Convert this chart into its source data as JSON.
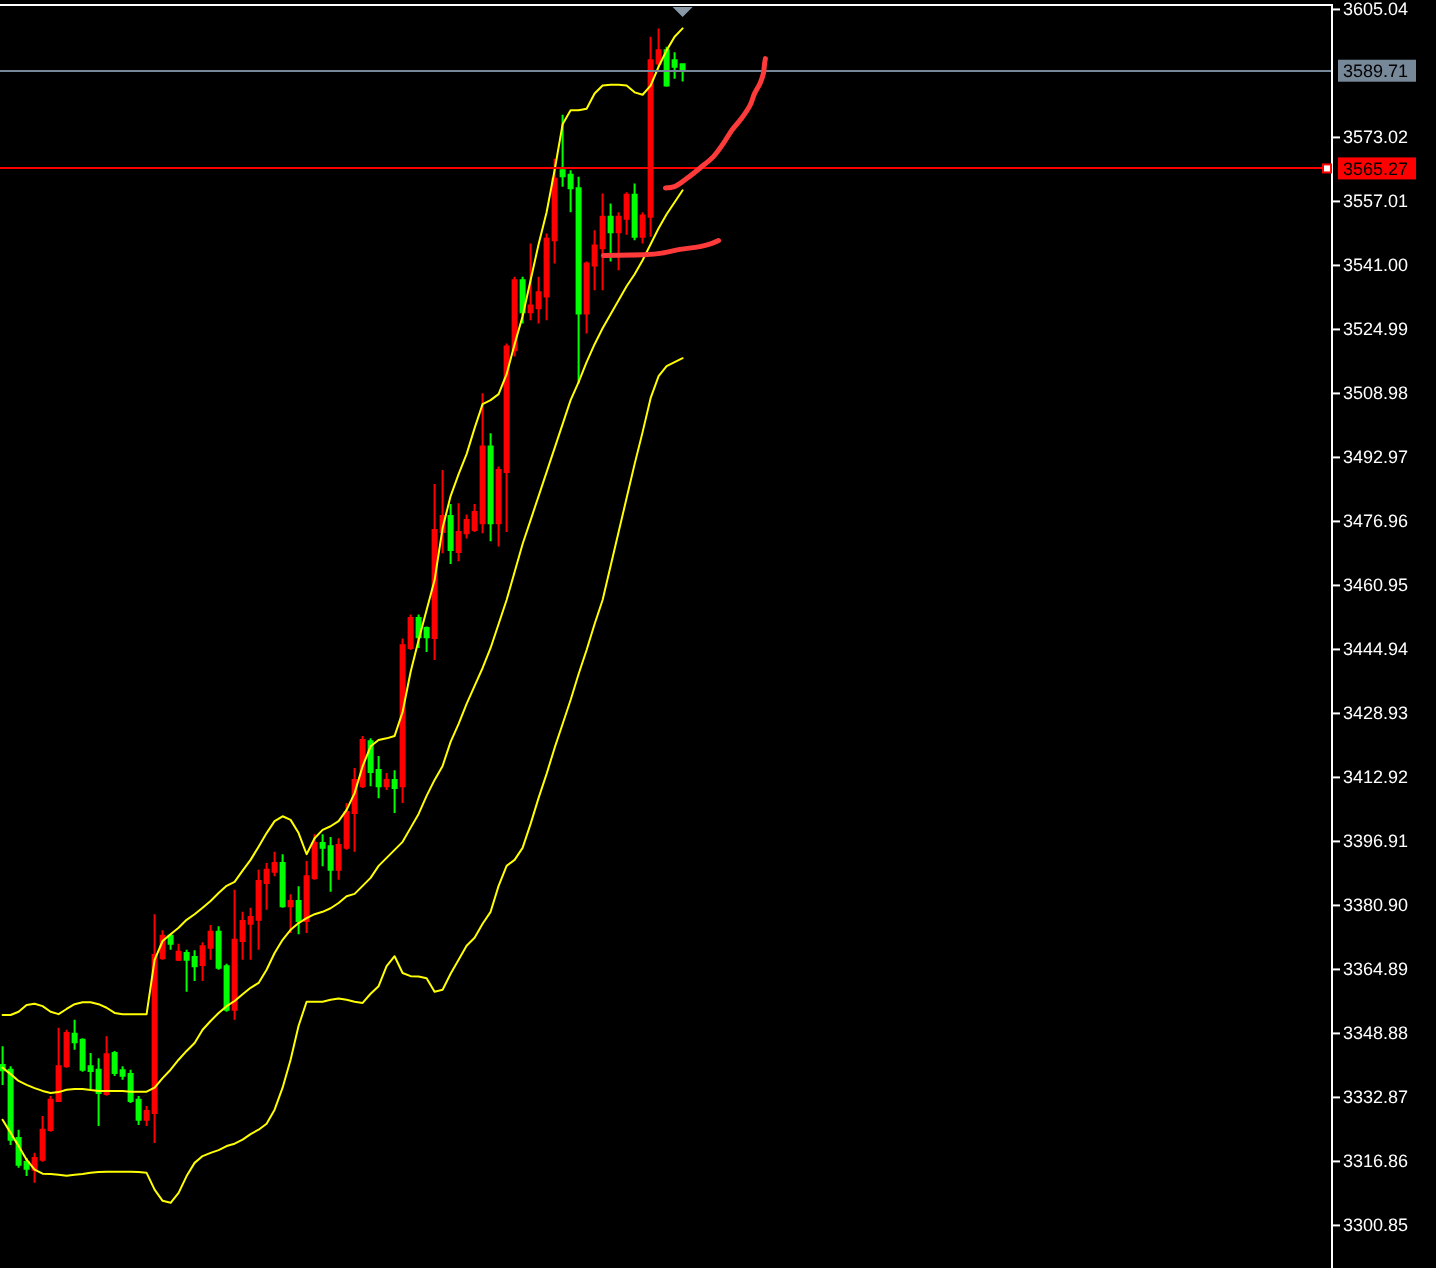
{
  "chart_data": {
    "type": "candlestick",
    "categories": [
      null,
      null,
      null,
      null,
      null,
      null,
      null,
      null,
      null,
      null,
      null,
      null,
      null,
      null,
      null,
      null,
      null,
      null,
      null,
      null,
      null,
      null,
      null,
      null,
      null,
      null,
      null,
      null,
      null,
      null,
      null,
      null,
      null,
      null,
      null,
      null,
      null,
      null,
      null,
      null,
      null,
      null,
      null,
      null,
      null,
      null,
      null,
      null,
      null,
      null,
      null,
      null,
      null,
      null,
      null,
      null,
      null,
      null,
      null,
      null,
      null,
      null,
      null,
      null,
      null,
      null,
      null,
      null,
      null,
      null,
      null,
      null,
      null,
      null,
      null,
      null,
      null,
      null,
      null,
      null,
      null,
      null,
      null,
      null,
      null,
      null
    ],
    "ylim": [
      3290.2,
      3606.4
    ],
    "yticks": [
      3605.04,
      3573.02,
      3557.01,
      {
        "value": 3541.0,
        "label": "3541.00"
      },
      3524.99,
      3508.98,
      3492.97,
      3476.96,
      3460.95,
      3444.94,
      3428.93,
      3412.92,
      3396.91,
      {
        "value": 3380.9,
        "label": "3380.90"
      },
      3364.89,
      3348.88,
      3332.87,
      3316.86,
      3300.85
    ],
    "tick_labels": "y",
    "ohlc": [
      [
        3341.0,
        3345.7,
        3336.0,
        3339.7
      ],
      [
        3339.8,
        3340.7,
        3321.0,
        3322.3
      ],
      [
        3322.7,
        3324.8,
        3315.3,
        3316.0
      ],
      [
        3316.7,
        3317.7,
        3313.2,
        3315.0
      ],
      [
        3314.8,
        3319.0,
        3311.5,
        3317.7
      ],
      [
        3317.3,
        3328.2,
        3316.8,
        3324.8
      ],
      [
        3324.7,
        3333.2,
        3324.3,
        3332.3
      ],
      [
        3332.0,
        3350.3,
        3331.7,
        3340.7
      ],
      [
        3340.7,
        3349.8,
        3340.3,
        3349.0
      ],
      [
        3348.8,
        3352.3,
        3344.8,
        3346.7
      ],
      [
        3347.3,
        3347.7,
        3339.3,
        3339.8
      ],
      [
        3340.7,
        3344.0,
        3334.8,
        3339.5
      ],
      [
        3339.8,
        3342.7,
        3325.7,
        3334.0
      ],
      [
        3333.7,
        3348.2,
        3333.3,
        3343.7
      ],
      [
        3344.0,
        3344.5,
        3338.2,
        3339.0
      ],
      [
        3339.7,
        3340.7,
        3337.3,
        3338.3
      ],
      [
        3338.7,
        3339.8,
        3331.5,
        3332.0
      ],
      [
        3332.3,
        3333.2,
        3326.0,
        3327.3
      ],
      [
        3327.3,
        3330.7,
        3325.7,
        3329.5
      ],
      [
        3329.0,
        3378.7,
        3321.5,
        3368.5
      ],
      [
        3367.7,
        3374.7,
        3367.3,
        3373.3
      ],
      [
        3373.3,
        3373.7,
        3369.8,
        3371.3
      ],
      [
        3367.3,
        3371.3,
        3367.0,
        3369.3
      ],
      [
        3369.0,
        3369.8,
        3359.3,
        3367.3
      ],
      [
        3368.0,
        3369.7,
        3362.0,
        3365.7
      ],
      [
        3366.0,
        3371.7,
        3362.0,
        3370.7
      ],
      [
        3370.3,
        3376.0,
        3367.3,
        3374.3
      ],
      [
        3374.3,
        3375.7,
        3364.8,
        3365.3
      ],
      [
        3365.7,
        3366.3,
        3354.3,
        3354.8
      ],
      [
        3354.8,
        3384.8,
        3352.3,
        3372.3
      ],
      [
        3372.0,
        3379.3,
        3367.3,
        3377.0
      ],
      [
        3376.3,
        3380.3,
        3367.3,
        3378.0
      ],
      [
        3377.3,
        3389.8,
        3369.8,
        3387.0
      ],
      [
        3386.5,
        3391.5,
        3379.8,
        3389.8
      ],
      [
        3389.3,
        3394.3,
        3388.2,
        3391.5
      ],
      [
        3391.5,
        3393.7,
        3380.3,
        3380.7
      ],
      [
        3380.7,
        3383.7,
        3374.0,
        3382.0
      ],
      [
        3382.0,
        3385.7,
        3373.7,
        3377.0
      ],
      [
        3377.0,
        3392.0,
        3374.0,
        3388.2
      ],
      [
        3387.7,
        3398.7,
        3387.3,
        3396.5
      ],
      [
        3396.5,
        3398.7,
        3390.7,
        3395.3
      ],
      [
        3395.7,
        3398.0,
        3384.3,
        3389.8
      ],
      [
        3389.8,
        3397.7,
        3387.3,
        3396.0
      ],
      [
        3395.3,
        3406.5,
        3394.8,
        3404.3
      ],
      [
        3404.0,
        3415.3,
        3394.3,
        3412.3
      ],
      [
        3410.7,
        3423.3,
        3410.3,
        3422.3
      ],
      [
        3422.0,
        3422.7,
        3410.7,
        3414.3
      ],
      [
        3414.8,
        3418.3,
        3407.7,
        3410.7
      ],
      [
        3410.7,
        3414.0,
        3409.8,
        3412.3
      ],
      [
        3412.3,
        3414.7,
        3404.0,
        3410.3
      ],
      [
        3410.7,
        3447.7,
        3406.5,
        3446.0
      ],
      [
        3445.3,
        3453.7,
        3444.8,
        3452.8
      ],
      [
        3452.8,
        3453.7,
        3445.3,
        3448.0
      ],
      [
        3450.3,
        3450.7,
        3444.3,
        3448.0
      ],
      [
        3447.8,
        3486.3,
        3442.3,
        3474.8
      ],
      [
        3474.3,
        3489.8,
        3469.0,
        3478.3
      ],
      [
        3478.3,
        3481.3,
        3466.3,
        3469.8
      ],
      [
        3469.3,
        3481.5,
        3467.0,
        3474.3
      ],
      [
        3474.0,
        3478.7,
        3472.7,
        3477.3
      ],
      [
        3474.8,
        3481.3,
        3474.3,
        3479.3
      ],
      [
        3476.5,
        3509.0,
        3474.0,
        3495.7
      ],
      [
        3495.7,
        3499.0,
        3472.0,
        3476.5
      ],
      [
        3476.5,
        3490.7,
        3470.7,
        3489.8
      ],
      [
        3489.3,
        3521.5,
        3474.3,
        3520.7
      ],
      [
        3519.8,
        3538.2,
        3518.2,
        3537.3
      ],
      [
        3537.3,
        3538.2,
        3526.5,
        3529.3
      ],
      [
        3529.3,
        3546.5,
        3527.3,
        3531.0
      ],
      [
        3530.3,
        3538.2,
        3526.5,
        3534.3
      ],
      [
        3533.2,
        3549.0,
        3527.3,
        3547.7
      ],
      [
        3547.3,
        3567.7,
        3541.5,
        3562.7
      ],
      [
        3564.8,
        3578.7,
        3560.7,
        3563.3
      ],
      [
        3563.7,
        3564.8,
        3554.3,
        3560.3
      ],
      [
        3560.3,
        3563.2,
        3511.5,
        3529.0
      ],
      [
        3529.0,
        3542.0,
        3524.0,
        3541.5
      ],
      [
        3541.0,
        3549.8,
        3534.8,
        3546.0
      ],
      [
        3545.3,
        3559.0,
        3534.8,
        3553.2
      ],
      [
        3553.2,
        3556.5,
        3542.0,
        3549.3
      ],
      [
        3549.3,
        3554.3,
        3539.8,
        3553.2
      ],
      [
        3552.7,
        3559.3,
        3548.7,
        3558.7
      ],
      [
        3558.7,
        3561.5,
        3547.3,
        3548.2
      ],
      [
        3548.2,
        3554.3,
        3546.5,
        3553.5
      ],
      [
        3553.2,
        3598.2,
        3548.2,
        3592.3
      ],
      [
        3591.5,
        3600.3,
        3590.7,
        3594.8
      ],
      [
        3594.8,
        3595.7,
        3585.7,
        3586.0
      ],
      [
        3592.3,
        3594.3,
        3587.7,
        3590.7
      ],
      [
        3591.3,
        3591.3,
        3587.0,
        3589.7
      ]
    ],
    "colors": [
      "#00ff00",
      "#00ff00",
      "#00ff00",
      "#00ff00",
      "#ff0000",
      "#ff0000",
      "#ff0000",
      "#ff0000",
      "#ff0000",
      "#00ff00",
      "#00ff00",
      "#00ff00",
      "#00ff00",
      "#ff0000",
      "#00ff00",
      "#00ff00",
      "#00ff00",
      "#00ff00",
      "#ff0000",
      "#ff0000",
      "#ff0000",
      "#00ff00",
      "#ff0000",
      "#00ff00",
      "#00ff00",
      "#ff0000",
      "#ff0000",
      "#00ff00",
      "#00ff00",
      "#ff0000",
      "#ff0000",
      "#ff0000",
      "#ff0000",
      "#ff0000",
      "#ff0000",
      "#00ff00",
      "#ff0000",
      "#00ff00",
      "#ff0000",
      "#ff0000",
      "#00ff00",
      "#00ff00",
      "#ff0000",
      "#ff0000",
      "#ff0000",
      "#ff0000",
      "#00ff00",
      "#00ff00",
      "#ff0000",
      "#00ff00",
      "#ff0000",
      "#ff0000",
      "#00ff00",
      "#00ff00",
      "#ff0000",
      "#ff0000",
      "#00ff00",
      "#ff0000",
      "#ff0000",
      "#ff0000",
      "#ff0000",
      "#00ff00",
      "#ff0000",
      "#ff0000",
      "#ff0000",
      "#00ff00",
      "#ff0000",
      "#ff0000",
      "#ff0000",
      "#ff0000",
      "#00ff00",
      "#00ff00",
      "#00ff00",
      "#ff0000",
      "#ff0000",
      "#ff0000",
      "#00ff00",
      "#ff0000",
      "#ff0000",
      "#00ff00",
      "#ff0000",
      "#ff0000",
      "#ff0000",
      "#00ff00",
      "#00ff00",
      "#00ff00"
    ],
    "series": [
      {
        "type": "line",
        "color": "#ffff00",
        "values": [
          3353.5,
          3353.5,
          3354.3,
          3356.0,
          3356.3,
          3355.7,
          3354.3,
          3353.7,
          3355.0,
          3356.2,
          3356.7,
          3356.7,
          3356.2,
          3355.3,
          3354.0,
          3353.7,
          3353.7,
          3353.7,
          3353.7,
          3367.3,
          3372.0,
          3373.7,
          3375.3,
          3377.3,
          3378.7,
          3380.3,
          3382.0,
          3384.0,
          3385.8,
          3386.8,
          3389.6,
          3392.3,
          3395.6,
          3399.0,
          3402.0,
          3403.2,
          3402.3,
          3399.0,
          3393.7,
          3397.7,
          3399.8,
          3400.7,
          3402.0,
          3404.8,
          3409.0,
          3415.7,
          3420.7,
          3422.3,
          3422.7,
          3423.3,
          3429.3,
          3439.3,
          3447.3,
          3454.8,
          3462.3,
          3475.3,
          3483.3,
          3488.8,
          3493.8,
          3500.3,
          3506.3,
          3507.3,
          3508.8,
          3513.8,
          3521.3,
          3528.3,
          3537.3,
          3546.3,
          3554.3,
          3564.8,
          3576.3,
          3579.8,
          3579.8,
          3580.2,
          3584.0,
          3586.0,
          3586.2,
          3586.2,
          3586.0,
          3584.3,
          3583.7,
          3586.0,
          3590.7,
          3594.8,
          3598.2,
          3600.3
        ]
      },
      {
        "type": "line",
        "color": "#ffff00",
        "values": [
          3340.3,
          3338.7,
          3337.0,
          3336.0,
          3335.2,
          3334.5,
          3334.0,
          3334.2,
          3334.8,
          3335.0,
          3335.0,
          3334.7,
          3334.5,
          3334.5,
          3334.5,
          3334.5,
          3334.3,
          3334.3,
          3334.3,
          3335.3,
          3337.7,
          3339.8,
          3342.3,
          3344.5,
          3346.5,
          3349.8,
          3352.0,
          3354.0,
          3355.7,
          3357.0,
          3358.7,
          3360.3,
          3361.5,
          3364.8,
          3369.0,
          3372.3,
          3374.8,
          3376.5,
          3377.7,
          3378.7,
          3379.3,
          3380.2,
          3381.5,
          3383.2,
          3383.8,
          3385.8,
          3387.8,
          3390.8,
          3392.8,
          3394.8,
          3396.8,
          3400.3,
          3403.8,
          3408.3,
          3412.3,
          3415.8,
          3421.8,
          3426.3,
          3431.3,
          3435.8,
          3440.3,
          3445.3,
          3451.3,
          3457.3,
          3464.3,
          3471.3,
          3477.3,
          3483.3,
          3489.3,
          3495.3,
          3501.3,
          3507.3,
          3511.8,
          3516.8,
          3521.3,
          3525.3,
          3528.8,
          3532.3,
          3535.8,
          3538.8,
          3542.3,
          3546.3,
          3550.3,
          3553.8,
          3556.8,
          3559.8
        ]
      },
      {
        "type": "line",
        "color": "#ffff00",
        "values": [
          3327.3,
          3324.0,
          3320.7,
          3317.3,
          3314.8,
          3313.8,
          3313.7,
          3313.5,
          3313.3,
          3313.5,
          3313.7,
          3314.0,
          3314.2,
          3314.3,
          3314.3,
          3314.3,
          3314.3,
          3314.2,
          3314.0,
          3309.8,
          3307.0,
          3306.5,
          3309.0,
          3313.2,
          3316.5,
          3318.2,
          3319.0,
          3319.7,
          3320.7,
          3321.3,
          3322.3,
          3323.7,
          3324.8,
          3326.3,
          3329.8,
          3335.3,
          3342.3,
          3350.8,
          3356.8,
          3356.8,
          3356.8,
          3357.3,
          3357.6,
          3357.3,
          3356.8,
          3356.5,
          3358.8,
          3360.7,
          3365.7,
          3368.2,
          3364.0,
          3363.2,
          3363.1,
          3362.7,
          3359.3,
          3359.8,
          3363.8,
          3367.3,
          3370.8,
          3372.8,
          3376.3,
          3379.3,
          3385.8,
          3390.8,
          3392.3,
          3395.3,
          3401.3,
          3407.8,
          3413.8,
          3420.3,
          3426.3,
          3432.3,
          3438.8,
          3444.8,
          3451.3,
          3457.3,
          3465.8,
          3474.3,
          3482.8,
          3491.3,
          3499.3,
          3507.8,
          3513.3,
          3515.8,
          3516.8,
          3517.8
        ]
      }
    ],
    "ref_lines": [
      {
        "axis": "y",
        "value": 3589.71,
        "label": "3589.71",
        "color": "#778899"
      },
      {
        "axis": "y",
        "value": 3565.27,
        "label": "3565.27",
        "color": "#ff0000"
      }
    ]
  }
}
